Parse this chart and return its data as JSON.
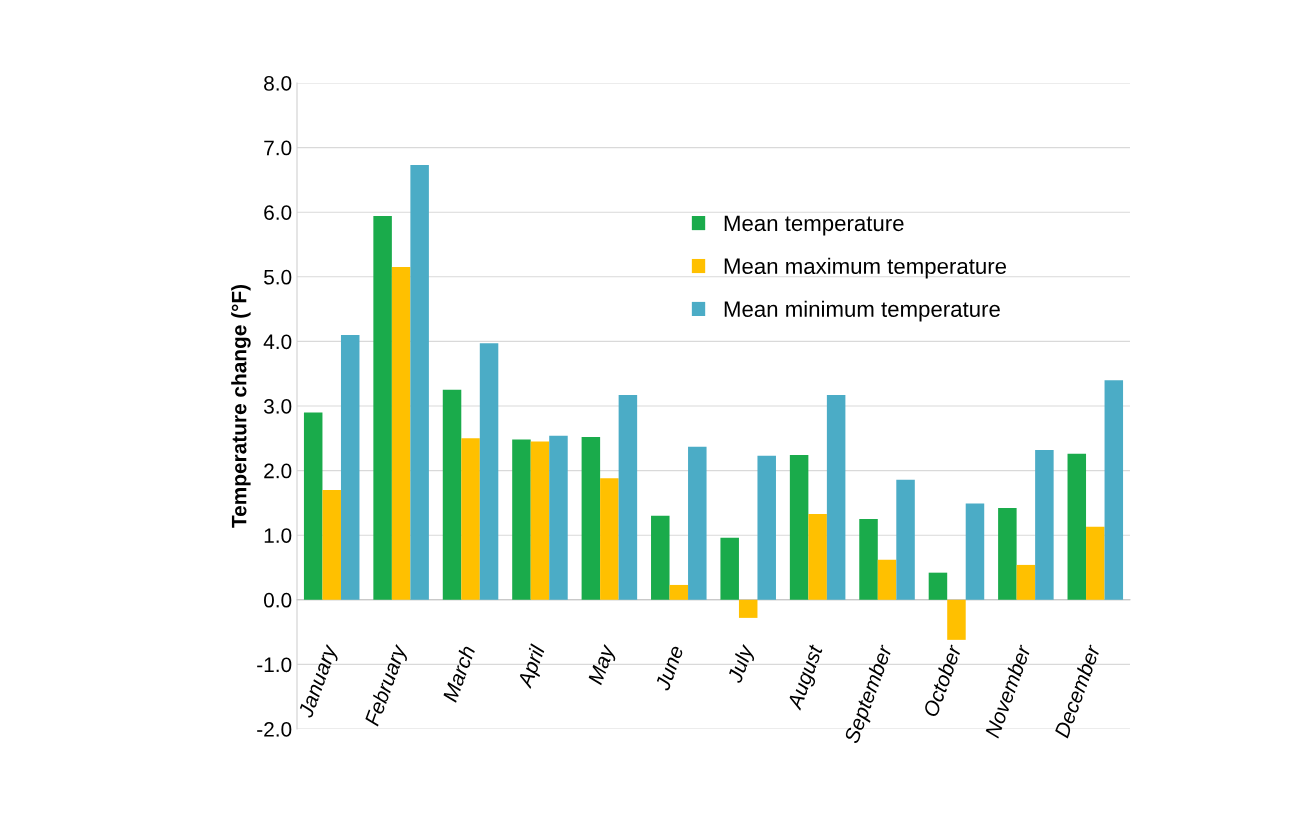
{
  "chart_data": {
    "type": "bar",
    "ylabel": "Temperature change (°F)",
    "categories": [
      "January",
      "February",
      "March",
      "April",
      "May",
      "June",
      "July",
      "August",
      "September",
      "October",
      "November",
      "December"
    ],
    "series": [
      {
        "name": "Mean temperature",
        "color": "#1aab4b",
        "values": [
          2.9,
          5.94,
          3.25,
          2.48,
          2.52,
          1.3,
          0.96,
          2.24,
          1.25,
          0.42,
          1.42,
          2.26
        ]
      },
      {
        "name": "Mean maximum temperature",
        "color": "#ffc000",
        "values": [
          1.7,
          5.15,
          2.5,
          2.45,
          1.88,
          0.23,
          -0.28,
          1.33,
          0.62,
          -0.62,
          0.54,
          1.13
        ]
      },
      {
        "name": "Mean minimum temperature",
        "color": "#4bacc6",
        "values": [
          4.1,
          6.73,
          3.97,
          2.54,
          3.17,
          2.37,
          2.23,
          3.17,
          1.86,
          1.49,
          2.32,
          3.4
        ]
      }
    ],
    "ylim": [
      -2.0,
      8.0
    ],
    "yticks": [
      {
        "value": -2,
        "label": "-2.0"
      },
      {
        "value": -1,
        "label": "-1.0"
      },
      {
        "value": 0,
        "label": "0.0"
      },
      {
        "value": 1,
        "label": "1.0"
      },
      {
        "value": 2,
        "label": "2.0"
      },
      {
        "value": 3,
        "label": "3.0"
      },
      {
        "value": 4,
        "label": "4.0"
      },
      {
        "value": 5,
        "label": "5.0"
      },
      {
        "value": 6,
        "label": "6.0"
      },
      {
        "value": 7,
        "label": "7.0"
      },
      {
        "value": 8,
        "label": "8.0"
      }
    ],
    "grid": "y",
    "legend": "top right"
  }
}
